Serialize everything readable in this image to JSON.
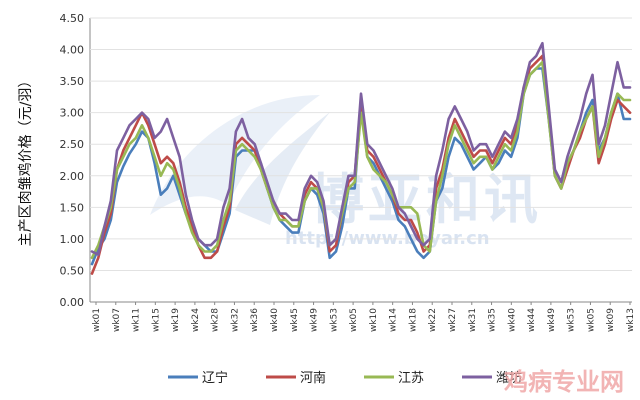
{
  "chart_data": {
    "type": "line",
    "ylabel": "主产区肉雏鸡价格（元/羽）",
    "ylim": [
      0,
      4.5
    ],
    "yticks": [
      "0.00",
      "0.50",
      "1.00",
      "1.50",
      "2.00",
      "2.50",
      "3.00",
      "3.50",
      "4.00",
      "4.50"
    ],
    "x_tick_labels": [
      "wk01",
      "wk07",
      "wk11",
      "wk15",
      "wk19",
      "wk24",
      "wk28",
      "wk32",
      "wk36",
      "wk40",
      "wk45",
      "wk49",
      "wk53",
      "wk05",
      "wk10",
      "wk14",
      "wk18",
      "wk22",
      "wk27",
      "wk31",
      "wk35",
      "wk40",
      "wk44",
      "wk49",
      "wk53",
      "wk05",
      "wk09",
      "wk13"
    ],
    "grid": "horizontal",
    "legend_position": "bottom",
    "series": [
      {
        "name": "辽宁",
        "color": "#4A7EBB",
        "values": [
          0.6,
          0.85,
          1.0,
          1.3,
          1.9,
          2.15,
          2.35,
          2.5,
          2.7,
          2.6,
          2.2,
          1.7,
          1.8,
          2.0,
          1.7,
          1.4,
          1.2,
          1.0,
          0.9,
          0.8,
          0.8,
          1.1,
          1.4,
          2.3,
          2.4,
          2.4,
          2.4,
          2.2,
          1.8,
          1.5,
          1.3,
          1.2,
          1.1,
          1.1,
          1.6,
          1.8,
          1.7,
          1.4,
          0.7,
          0.8,
          1.2,
          1.8,
          1.8,
          3.1,
          2.3,
          2.2,
          2.0,
          1.8,
          1.6,
          1.3,
          1.2,
          1.0,
          0.8,
          0.7,
          0.8,
          1.6,
          1.8,
          2.3,
          2.6,
          2.5,
          2.3,
          2.1,
          2.2,
          2.3,
          2.1,
          2.2,
          2.4,
          2.3,
          2.6,
          3.3,
          3.6,
          3.7,
          3.7,
          2.9,
          2.0,
          1.8,
          2.2,
          2.4,
          2.7,
          3.0,
          3.2,
          2.4,
          2.6,
          3.0,
          3.3,
          2.9,
          2.9
        ]
      },
      {
        "name": "河南",
        "color": "#BE4B48",
        "values": [
          0.45,
          0.7,
          1.1,
          1.4,
          2.1,
          2.4,
          2.6,
          2.8,
          3.0,
          2.8,
          2.5,
          2.2,
          2.3,
          2.2,
          1.9,
          1.5,
          1.2,
          0.9,
          0.7,
          0.7,
          0.8,
          1.2,
          1.5,
          2.5,
          2.6,
          2.5,
          2.4,
          2.1,
          1.8,
          1.6,
          1.4,
          1.3,
          1.2,
          1.2,
          1.7,
          1.9,
          1.8,
          1.5,
          0.8,
          0.9,
          1.4,
          1.9,
          2.0,
          3.2,
          2.4,
          2.3,
          2.1,
          1.9,
          1.7,
          1.4,
          1.3,
          1.3,
          1.1,
          0.8,
          0.9,
          1.8,
          2.1,
          2.6,
          2.9,
          2.7,
          2.5,
          2.3,
          2.4,
          2.4,
          2.2,
          2.4,
          2.6,
          2.5,
          2.8,
          3.4,
          3.7,
          3.8,
          3.9,
          3.0,
          2.0,
          1.8,
          2.1,
          2.4,
          2.6,
          2.9,
          3.1,
          2.2,
          2.5,
          2.9,
          3.2,
          3.1,
          3.0
        ]
      },
      {
        "name": "江苏",
        "color": "#98B954",
        "values": [
          0.7,
          0.9,
          1.2,
          1.5,
          2.1,
          2.3,
          2.5,
          2.6,
          2.8,
          2.6,
          2.3,
          2.0,
          2.2,
          2.1,
          1.8,
          1.4,
          1.1,
          0.9,
          0.8,
          0.8,
          0.9,
          1.3,
          1.6,
          2.4,
          2.5,
          2.4,
          2.3,
          2.1,
          1.8,
          1.5,
          1.3,
          1.3,
          1.2,
          1.2,
          1.6,
          1.8,
          1.8,
          1.5,
          0.9,
          1.0,
          1.4,
          1.8,
          1.9,
          3.0,
          2.3,
          2.1,
          2.0,
          1.9,
          1.7,
          1.5,
          1.5,
          1.5,
          1.4,
          0.9,
          0.8,
          1.6,
          2.0,
          2.5,
          2.8,
          2.6,
          2.4,
          2.2,
          2.3,
          2.3,
          2.1,
          2.3,
          2.5,
          2.4,
          2.7,
          3.3,
          3.6,
          3.7,
          3.8,
          2.9,
          2.0,
          1.8,
          2.2,
          2.4,
          2.7,
          2.9,
          3.1,
          2.3,
          2.6,
          3.0,
          3.3,
          3.2,
          3.2
        ]
      },
      {
        "name": "潍坊",
        "color": "#7D60A0",
        "values": [
          0.8,
          0.75,
          1.2,
          1.6,
          2.4,
          2.6,
          2.8,
          2.9,
          3.0,
          2.9,
          2.6,
          2.7,
          2.9,
          2.6,
          2.3,
          1.7,
          1.3,
          1.0,
          0.9,
          0.9,
          1.0,
          1.5,
          1.8,
          2.7,
          2.9,
          2.6,
          2.5,
          2.2,
          1.9,
          1.6,
          1.4,
          1.4,
          1.3,
          1.3,
          1.8,
          2.0,
          1.9,
          1.6,
          0.9,
          1.0,
          1.5,
          2.0,
          2.0,
          3.3,
          2.5,
          2.4,
          2.2,
          2.0,
          1.8,
          1.5,
          1.4,
          1.2,
          1.0,
          0.9,
          1.0,
          2.0,
          2.4,
          2.9,
          3.1,
          2.9,
          2.7,
          2.4,
          2.5,
          2.5,
          2.3,
          2.5,
          2.7,
          2.6,
          2.9,
          3.4,
          3.8,
          3.9,
          4.1,
          3.1,
          2.1,
          1.9,
          2.3,
          2.6,
          2.9,
          3.3,
          3.6,
          2.5,
          2.8,
          3.3,
          3.8,
          3.4,
          3.4
        ]
      }
    ]
  },
  "watermark": {
    "main": "博亚和讯",
    "url": "http://www.boyar.cn",
    "corner": "鸡病专业网"
  }
}
